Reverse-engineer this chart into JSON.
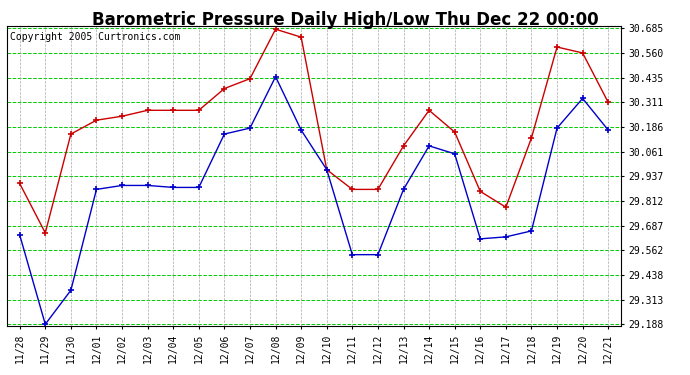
{
  "title": "Barometric Pressure Daily High/Low Thu Dec 22 00:00",
  "copyright": "Copyright 2005 Curtronics.com",
  "labels": [
    "11/28",
    "11/29",
    "11/30",
    "12/01",
    "12/02",
    "12/03",
    "12/04",
    "12/05",
    "12/06",
    "12/07",
    "12/08",
    "12/09",
    "12/10",
    "12/11",
    "12/12",
    "12/13",
    "12/14",
    "12/15",
    "12/16",
    "12/17",
    "12/18",
    "12/19",
    "12/20",
    "12/21"
  ],
  "high": [
    29.9,
    29.65,
    30.15,
    30.22,
    30.24,
    30.27,
    30.27,
    30.27,
    30.38,
    30.43,
    30.68,
    30.64,
    29.97,
    29.87,
    29.87,
    30.09,
    30.27,
    30.16,
    29.86,
    29.78,
    30.13,
    30.59,
    30.56,
    30.31
  ],
  "low": [
    29.64,
    29.188,
    29.36,
    29.87,
    29.89,
    29.89,
    29.88,
    29.88,
    30.15,
    30.18,
    30.44,
    30.17,
    29.97,
    29.54,
    29.54,
    29.87,
    30.09,
    30.05,
    29.62,
    29.63,
    29.66,
    30.18,
    30.33,
    30.17
  ],
  "high_color": "#cc0000",
  "low_color": "#0000cc",
  "hgrid_color": "#00cc00",
  "vgrid_color": "#aaaaaa",
  "bg_color": "#ffffff",
  "plot_bg_color": "#ffffff",
  "y_min": 29.188,
  "y_max": 30.685,
  "y_ticks": [
    29.188,
    29.313,
    29.438,
    29.562,
    29.687,
    29.812,
    29.937,
    30.061,
    30.186,
    30.311,
    30.435,
    30.56,
    30.685
  ],
  "title_fontsize": 12,
  "tick_fontsize": 7,
  "copyright_fontsize": 7
}
